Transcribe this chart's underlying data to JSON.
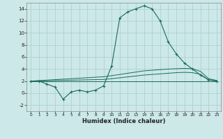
{
  "xlabel": "Humidex (Indice chaleur)",
  "x": [
    0,
    1,
    2,
    3,
    4,
    5,
    6,
    7,
    8,
    9,
    10,
    11,
    12,
    13,
    14,
    15,
    16,
    17,
    18,
    19,
    20,
    21,
    22,
    23
  ],
  "y_main": [
    2,
    2,
    1.5,
    1,
    -1,
    0.2,
    0.5,
    0.2,
    0.5,
    1.2,
    4.5,
    12.5,
    13.5,
    14,
    14.5,
    14,
    12,
    8.5,
    6.5,
    5,
    4,
    3,
    2.2,
    2
  ],
  "y_line1": [
    2,
    2,
    2,
    2,
    2,
    2,
    2,
    2,
    2,
    2,
    2,
    2,
    2,
    2,
    2,
    2,
    2,
    2,
    2,
    2,
    2,
    2,
    2,
    2
  ],
  "y_line2": [
    2,
    2.08,
    2.16,
    2.24,
    2.32,
    2.4,
    2.48,
    2.56,
    2.64,
    2.72,
    2.9,
    3.1,
    3.3,
    3.5,
    3.7,
    3.8,
    3.9,
    4.0,
    4.05,
    4.1,
    4.05,
    3.6,
    2.4,
    2.1
  ],
  "y_line3": [
    2,
    2.03,
    2.06,
    2.09,
    2.12,
    2.15,
    2.18,
    2.21,
    2.24,
    2.27,
    2.4,
    2.55,
    2.7,
    2.85,
    3.0,
    3.1,
    3.2,
    3.3,
    3.4,
    3.45,
    3.4,
    3.1,
    2.2,
    2.05
  ],
  "ylim": [
    -3,
    15
  ],
  "yticks": [
    -2,
    0,
    2,
    4,
    6,
    8,
    10,
    12,
    14
  ],
  "xticks": [
    0,
    1,
    2,
    3,
    4,
    5,
    6,
    7,
    8,
    9,
    10,
    11,
    12,
    13,
    14,
    15,
    16,
    17,
    18,
    19,
    20,
    21,
    22,
    23
  ],
  "xlim": [
    -0.5,
    23.5
  ],
  "bg_color": "#cce8e8",
  "line_color": "#1a6b5e",
  "grid_color": "#aacccc"
}
